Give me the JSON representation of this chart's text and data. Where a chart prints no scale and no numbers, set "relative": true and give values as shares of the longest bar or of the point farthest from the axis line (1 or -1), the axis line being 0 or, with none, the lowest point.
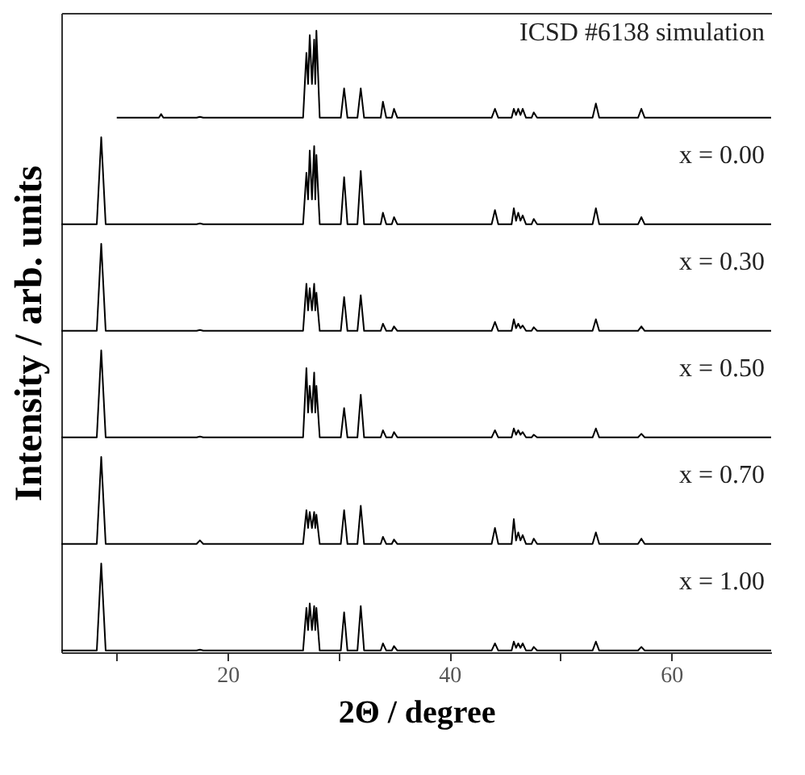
{
  "chart_data": [
    {
      "type": "line",
      "relative": true,
      "xlim": [
        5,
        69
      ],
      "tick_labels": false,
      "grid": false,
      "series": [
        {
          "name": "ICSD #6138 simulation",
          "color": "#000000",
          "x": [
            10,
            13.8,
            14.0,
            14.2,
            17.2,
            17.5,
            17.8,
            20,
            26.8,
            27.1,
            27.25,
            27.4,
            27.6,
            27.8,
            27.9,
            28.0,
            28.3,
            30.2,
            30.5,
            30.8,
            31.7,
            32.0,
            32.3,
            33.8,
            34.0,
            34.3,
            34.8,
            35.0,
            35.3,
            40,
            43.8,
            44.1,
            44.4,
            45.6,
            45.8,
            46.0,
            46.2,
            46.4,
            46.6,
            46.9,
            47.4,
            47.6,
            47.9,
            52.9,
            53.2,
            53.5,
            57.0,
            57.3,
            57.6,
            69
          ],
          "values": [
            0.02,
            0.02,
            0.06,
            0.02,
            0.02,
            0.03,
            0.02,
            0.02,
            0.02,
            0.75,
            0.4,
            0.95,
            0.4,
            0.9,
            0.4,
            1,
            0.02,
            0.02,
            0.35,
            0.02,
            0.02,
            0.35,
            0.02,
            0.02,
            0.2,
            0.02,
            0.02,
            0.12,
            0.02,
            0.02,
            0.02,
            0.12,
            0.02,
            0.02,
            0.12,
            0.05,
            0.12,
            0.05,
            0.12,
            0.02,
            0.02,
            0.08,
            0.02,
            0.02,
            0.18,
            0.02,
            0.02,
            0.12,
            0.02,
            0.02
          ]
        }
      ]
    },
    {
      "type": "line",
      "relative": true,
      "xlim": [
        5,
        69
      ],
      "tick_labels": false,
      "grid": false,
      "series": [
        {
          "name": "x = 0.00",
          "color": "#000000",
          "x": [
            5,
            8.2,
            8.6,
            9.0,
            14,
            17.2,
            17.5,
            17.8,
            20,
            26.8,
            27.1,
            27.25,
            27.4,
            27.6,
            27.8,
            27.9,
            28.0,
            28.3,
            30.2,
            30.5,
            30.8,
            31.7,
            32.0,
            32.3,
            33.8,
            34.0,
            34.3,
            34.8,
            35.0,
            35.3,
            40,
            43.8,
            44.1,
            44.4,
            45.6,
            45.8,
            46.0,
            46.2,
            46.4,
            46.6,
            46.9,
            47.4,
            47.6,
            47.9,
            52.9,
            53.2,
            53.5,
            57.0,
            57.3,
            57.6,
            69
          ],
          "values": [
            0.02,
            0.02,
            1,
            0.02,
            0.02,
            0.02,
            0.03,
            0.02,
            0.02,
            0.02,
            0.6,
            0.3,
            0.85,
            0.3,
            0.9,
            0.3,
            0.8,
            0.02,
            0.02,
            0.55,
            0.02,
            0.02,
            0.62,
            0.02,
            0.02,
            0.15,
            0.02,
            0.02,
            0.1,
            0.02,
            0.02,
            0.02,
            0.18,
            0.02,
            0.02,
            0.2,
            0.06,
            0.15,
            0.06,
            0.12,
            0.02,
            0.02,
            0.08,
            0.02,
            0.02,
            0.2,
            0.02,
            0.02,
            0.1,
            0.02,
            0.02
          ]
        }
      ]
    },
    {
      "type": "line",
      "relative": true,
      "xlim": [
        5,
        69
      ],
      "tick_labels": false,
      "grid": false,
      "ylabel": "Intensity / arb. units",
      "series": [
        {
          "name": "x = 0.30",
          "color": "#000000",
          "x": [
            5,
            8.2,
            8.6,
            9.0,
            14,
            17.2,
            17.5,
            17.8,
            20,
            26.8,
            27.1,
            27.25,
            27.4,
            27.6,
            27.8,
            27.9,
            28.0,
            28.3,
            30.2,
            30.5,
            30.8,
            31.7,
            32.0,
            32.3,
            33.8,
            34.0,
            34.3,
            34.8,
            35.0,
            35.3,
            40,
            43.8,
            44.1,
            44.4,
            45.6,
            45.8,
            46.0,
            46.2,
            46.4,
            46.6,
            46.9,
            47.4,
            47.6,
            47.9,
            52.9,
            53.2,
            53.5,
            57.0,
            57.3,
            57.6,
            69
          ],
          "values": [
            0.02,
            0.02,
            1,
            0.02,
            0.02,
            0.02,
            0.03,
            0.02,
            0.02,
            0.02,
            0.55,
            0.25,
            0.5,
            0.25,
            0.55,
            0.25,
            0.45,
            0.02,
            0.02,
            0.4,
            0.02,
            0.02,
            0.42,
            0.02,
            0.02,
            0.1,
            0.02,
            0.02,
            0.07,
            0.02,
            0.02,
            0.02,
            0.12,
            0.02,
            0.02,
            0.15,
            0.05,
            0.1,
            0.05,
            0.08,
            0.02,
            0.02,
            0.06,
            0.02,
            0.02,
            0.15,
            0.02,
            0.02,
            0.07,
            0.02,
            0.02
          ]
        }
      ]
    },
    {
      "type": "line",
      "relative": true,
      "xlim": [
        5,
        69
      ],
      "tick_labels": false,
      "grid": false,
      "series": [
        {
          "name": "x = 0.50",
          "color": "#000000",
          "x": [
            5,
            8.2,
            8.6,
            9.0,
            14,
            17.2,
            17.5,
            17.8,
            20,
            26.8,
            27.1,
            27.25,
            27.4,
            27.6,
            27.8,
            27.9,
            28.0,
            28.3,
            30.2,
            30.5,
            30.8,
            31.7,
            32.0,
            32.3,
            33.8,
            34.0,
            34.3,
            34.8,
            35.0,
            35.3,
            40,
            43.8,
            44.1,
            44.4,
            45.6,
            45.8,
            46.0,
            46.2,
            46.4,
            46.6,
            46.9,
            47.4,
            47.6,
            47.9,
            52.9,
            53.2,
            53.5,
            57.0,
            57.3,
            57.6,
            69
          ],
          "values": [
            0.02,
            0.02,
            1,
            0.02,
            0.02,
            0.02,
            0.03,
            0.02,
            0.02,
            0.02,
            0.8,
            0.3,
            0.6,
            0.3,
            0.75,
            0.3,
            0.6,
            0.02,
            0.02,
            0.35,
            0.02,
            0.02,
            0.5,
            0.02,
            0.02,
            0.1,
            0.02,
            0.02,
            0.08,
            0.02,
            0.02,
            0.02,
            0.1,
            0.02,
            0.02,
            0.12,
            0.05,
            0.1,
            0.05,
            0.08,
            0.02,
            0.02,
            0.05,
            0.02,
            0.02,
            0.12,
            0.02,
            0.02,
            0.06,
            0.02,
            0.02
          ]
        }
      ]
    },
    {
      "type": "line",
      "relative": true,
      "xlim": [
        5,
        69
      ],
      "tick_labels": false,
      "grid": false,
      "series": [
        {
          "name": "x = 0.70",
          "color": "#000000",
          "x": [
            5,
            8.2,
            8.6,
            9.0,
            14,
            17.2,
            17.5,
            17.8,
            20,
            26.8,
            27.1,
            27.25,
            27.4,
            27.6,
            27.8,
            27.9,
            28.0,
            28.3,
            30.2,
            30.5,
            30.8,
            31.7,
            32.0,
            32.3,
            33.8,
            34.0,
            34.3,
            34.8,
            35.0,
            35.3,
            40,
            43.8,
            44.1,
            44.4,
            45.6,
            45.8,
            46.0,
            46.2,
            46.4,
            46.6,
            46.9,
            47.4,
            47.6,
            47.9,
            52.9,
            53.2,
            53.5,
            57.0,
            57.3,
            57.6,
            69
          ],
          "values": [
            0.02,
            0.02,
            1,
            0.02,
            0.02,
            0.02,
            0.06,
            0.02,
            0.02,
            0.02,
            0.4,
            0.2,
            0.38,
            0.2,
            0.38,
            0.2,
            0.35,
            0.02,
            0.02,
            0.4,
            0.02,
            0.02,
            0.45,
            0.02,
            0.02,
            0.1,
            0.02,
            0.02,
            0.07,
            0.02,
            0.02,
            0.02,
            0.2,
            0.02,
            0.02,
            0.3,
            0.06,
            0.15,
            0.06,
            0.12,
            0.02,
            0.02,
            0.08,
            0.02,
            0.02,
            0.15,
            0.02,
            0.02,
            0.08,
            0.02,
            0.02
          ]
        }
      ]
    },
    {
      "type": "line",
      "relative": true,
      "xlim": [
        5,
        69
      ],
      "tick_labels": "x",
      "grid": false,
      "xlabel": "2Θ / degree",
      "xticks": [
        {
          "value": 10,
          "label": null
        },
        20,
        {
          "value": 30,
          "label": null
        },
        40,
        {
          "value": 50,
          "label": null
        },
        60
      ],
      "series": [
        {
          "name": "x = 1.00",
          "color": "#000000",
          "x": [
            5,
            8.2,
            8.6,
            9.0,
            14,
            17.2,
            17.5,
            17.8,
            20,
            26.8,
            27.1,
            27.25,
            27.4,
            27.6,
            27.8,
            27.9,
            28.0,
            28.3,
            30.2,
            30.5,
            30.8,
            31.7,
            32.0,
            32.3,
            33.8,
            34.0,
            34.3,
            34.8,
            35.0,
            35.3,
            40,
            43.8,
            44.1,
            44.4,
            45.6,
            45.8,
            46.0,
            46.2,
            46.4,
            46.6,
            46.9,
            47.4,
            47.6,
            47.9,
            52.9,
            53.2,
            53.5,
            57.0,
            57.3,
            57.6,
            69
          ],
          "values": [
            0.02,
            0.02,
            1,
            0.02,
            0.02,
            0.02,
            0.03,
            0.02,
            0.02,
            0.02,
            0.5,
            0.25,
            0.55,
            0.25,
            0.52,
            0.25,
            0.5,
            0.02,
            0.02,
            0.45,
            0.02,
            0.02,
            0.52,
            0.02,
            0.02,
            0.1,
            0.02,
            0.02,
            0.07,
            0.02,
            0.02,
            0.02,
            0.1,
            0.02,
            0.02,
            0.12,
            0.05,
            0.1,
            0.05,
            0.1,
            0.02,
            0.02,
            0.06,
            0.02,
            0.02,
            0.12,
            0.02,
            0.02,
            0.06,
            0.02,
            0.02
          ]
        }
      ]
    }
  ]
}
